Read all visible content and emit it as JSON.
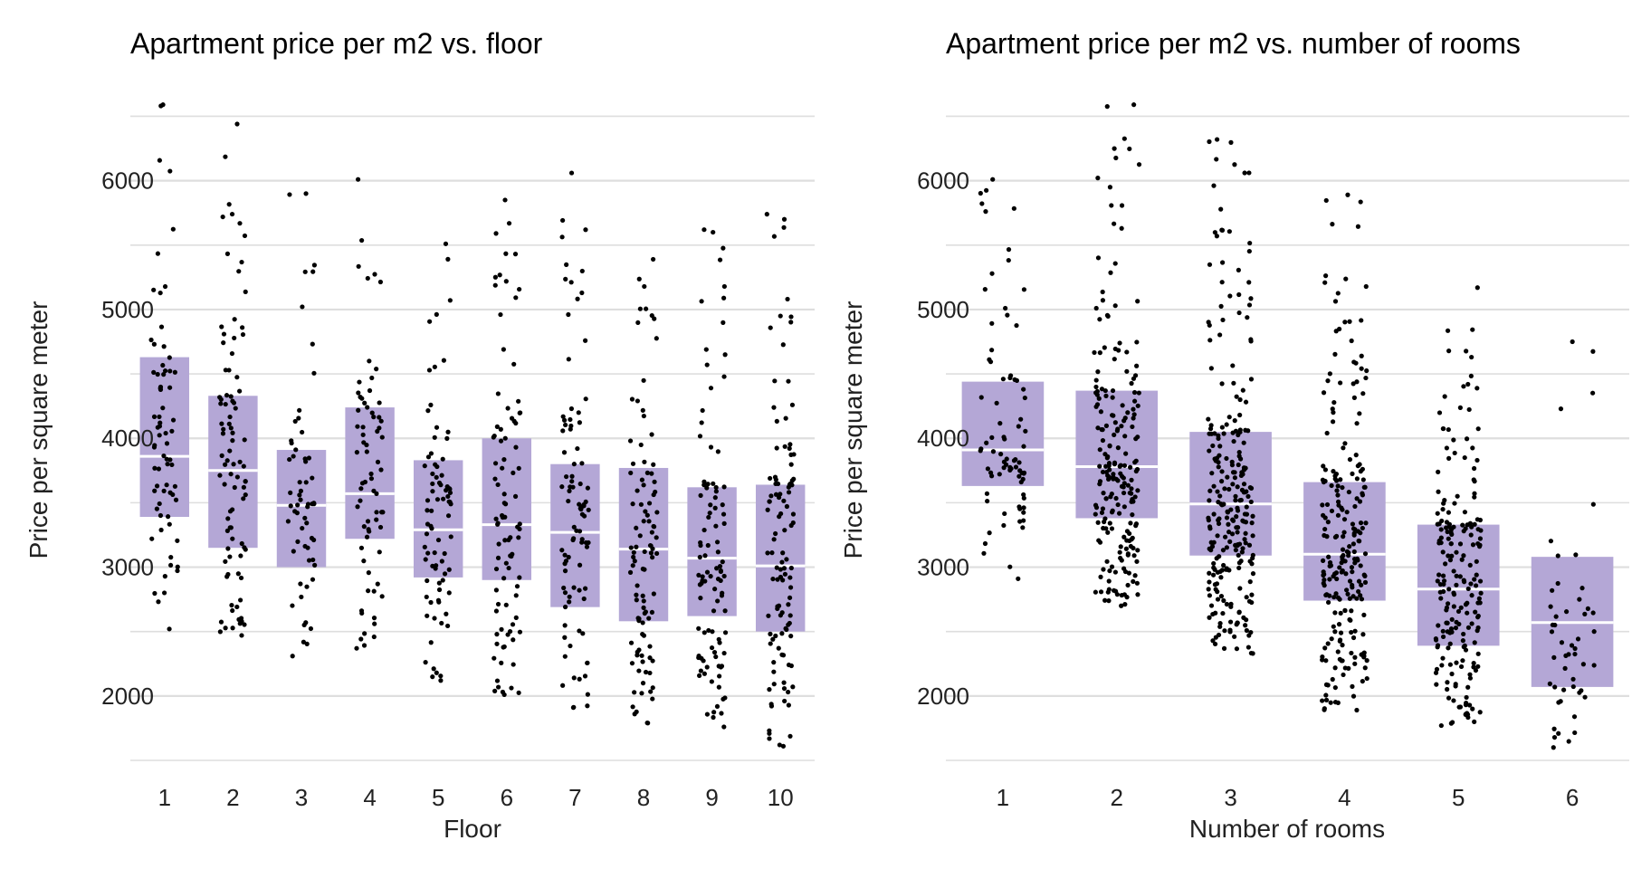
{
  "colors": {
    "background": "#ffffff",
    "gridline": "#dedede",
    "box_fill": "#b4a7d6",
    "median_line": "#ffffff",
    "points": "#000000"
  },
  "chart_data": [
    {
      "type": "box_jitter",
      "title": "Apartment price per m2 vs. floor",
      "xlabel": "Floor",
      "ylabel": "Price per square meter",
      "ylim": [
        1500,
        6700
      ],
      "yticks": [
        2000,
        3000,
        4000,
        5000,
        6000
      ],
      "grid": true,
      "categories": [
        "1",
        "2",
        "3",
        "4",
        "5",
        "6",
        "7",
        "8",
        "9",
        "10"
      ],
      "boxes": [
        {
          "q1": 3390,
          "median": 3860,
          "q3": 4630,
          "min": 2520,
          "max": 6590,
          "n": 70
        },
        {
          "q1": 3150,
          "median": 3750,
          "q3": 4330,
          "min": 2470,
          "max": 6440,
          "n": 90
        },
        {
          "q1": 3000,
          "median": 3480,
          "q3": 3910,
          "min": 2310,
          "max": 5900,
          "n": 60
        },
        {
          "q1": 3220,
          "median": 3570,
          "q3": 4240,
          "min": 2370,
          "max": 6010,
          "n": 70
        },
        {
          "q1": 2920,
          "median": 3290,
          "q3": 3830,
          "min": 2120,
          "max": 5510,
          "n": 80
        },
        {
          "q1": 2900,
          "median": 3330,
          "q3": 4000,
          "min": 2010,
          "max": 5850,
          "n": 90
        },
        {
          "q1": 2690,
          "median": 3270,
          "q3": 3800,
          "min": 1910,
          "max": 6060,
          "n": 90
        },
        {
          "q1": 2580,
          "median": 3140,
          "q3": 3770,
          "min": 1790,
          "max": 5390,
          "n": 100
        },
        {
          "q1": 2620,
          "median": 3070,
          "q3": 3620,
          "min": 1760,
          "max": 5620,
          "n": 100
        },
        {
          "q1": 2500,
          "median": 3010,
          "q3": 3640,
          "min": 1610,
          "max": 5740,
          "n": 110
        }
      ]
    },
    {
      "type": "box_jitter",
      "title": "Apartment price per m2 vs. number of rooms",
      "xlabel": "Number of rooms",
      "ylabel": "Price per square meter",
      "ylim": [
        1500,
        6700
      ],
      "yticks": [
        2000,
        3000,
        4000,
        5000,
        6000
      ],
      "grid": true,
      "categories": [
        "1",
        "2",
        "3",
        "4",
        "5",
        "6"
      ],
      "boxes": [
        {
          "q1": 3630,
          "median": 3910,
          "q3": 4440,
          "min": 2910,
          "max": 6010,
          "n": 80
        },
        {
          "q1": 3380,
          "median": 3780,
          "q3": 4370,
          "min": 2700,
          "max": 6590,
          "n": 210
        },
        {
          "q1": 3090,
          "median": 3490,
          "q3": 4050,
          "min": 2330,
          "max": 6320,
          "n": 250
        },
        {
          "q1": 2740,
          "median": 3100,
          "q3": 3660,
          "min": 1890,
          "max": 5890,
          "n": 230
        },
        {
          "q1": 2390,
          "median": 2830,
          "q3": 3330,
          "min": 1770,
          "max": 5170,
          "n": 200
        },
        {
          "q1": 2070,
          "median": 2570,
          "q3": 3080,
          "min": 1600,
          "max": 4750,
          "n": 50
        }
      ]
    }
  ]
}
